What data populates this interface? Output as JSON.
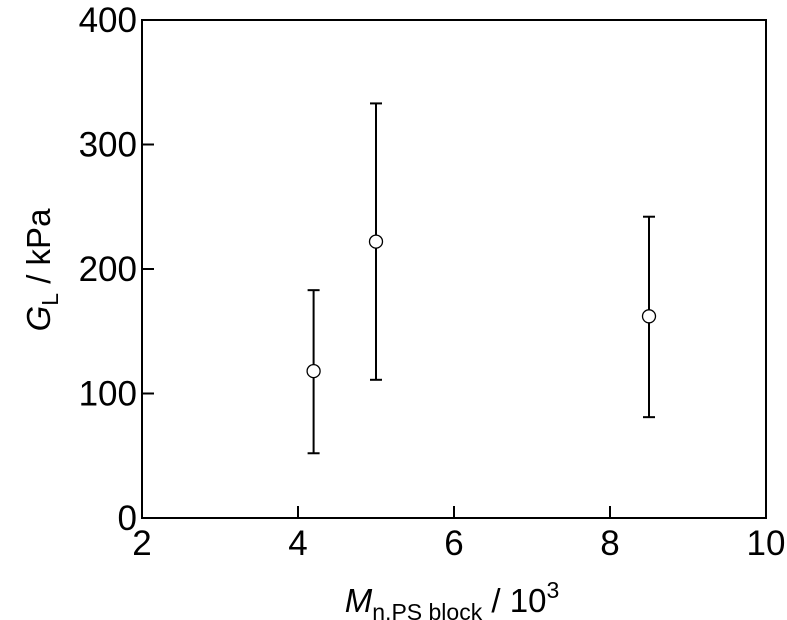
{
  "chart_data": {
    "type": "scatter",
    "xlabel": {
      "symbol": "M",
      "subscript": "n,PS block",
      "suffix": " / 10",
      "superscript": "3"
    },
    "ylabel": {
      "symbol": "G",
      "subscript": "L",
      "suffix": " / kPa"
    },
    "xlim": [
      2,
      10
    ],
    "ylim": [
      0,
      400
    ],
    "x_ticks": [
      2,
      4,
      6,
      8,
      10
    ],
    "y_ticks": [
      0,
      100,
      200,
      300,
      400
    ],
    "grid": false,
    "series": [
      {
        "points": [
          {
            "x": 4.2,
            "y": 118,
            "err_low": 52,
            "err_high": 183
          },
          {
            "x": 5.0,
            "y": 222,
            "err_low": 111,
            "err_high": 333
          },
          {
            "x": 8.5,
            "y": 162,
            "err_low": 81,
            "err_high": 242
          }
        ]
      }
    ]
  }
}
